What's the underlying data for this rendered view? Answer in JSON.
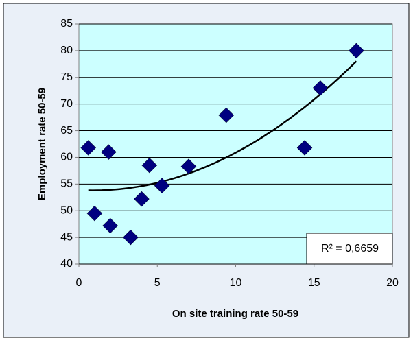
{
  "chart_data": {
    "type": "scatter",
    "x_label": "On site training rate  50-59",
    "y_label": "Employment rate 50-59",
    "annotation": "R² = 0,6659",
    "trendline": "polynomial",
    "series": [
      {
        "name": "Employment rate 50-59",
        "color": "#000080",
        "x": [
          0.6,
          1.0,
          1.9,
          2.0,
          3.3,
          4.0,
          4.5,
          5.3,
          7.0,
          9.4,
          14.4,
          15.4,
          17.7
        ],
        "values": [
          61.8,
          49.5,
          61,
          47.2,
          45,
          52.2,
          58.5,
          54.7,
          58.3,
          67.9,
          61.8,
          73,
          80
        ]
      }
    ],
    "xlim": [
      0,
      20
    ],
    "xticks": [
      0,
      5,
      10,
      15,
      20
    ],
    "ylim": [
      40,
      85
    ],
    "yticks": [
      40,
      45,
      50,
      55,
      60,
      65,
      70,
      75,
      80,
      85
    ],
    "grid": true
  }
}
